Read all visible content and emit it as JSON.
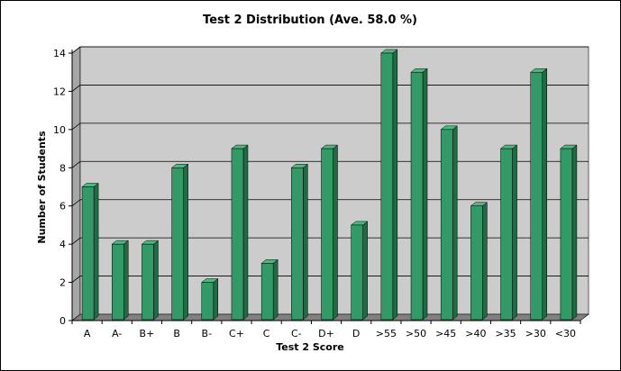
{
  "chart_data": {
    "type": "bar",
    "title": "Test 2 Distribution (Ave. 58.0 %)",
    "xlabel": "Test 2 Score",
    "ylabel": "Number of Students",
    "categories": [
      "A",
      "A-",
      "B+",
      "B",
      "B-",
      "C+",
      "C",
      "C-",
      "D+",
      "D",
      ">55",
      ">50",
      ">45",
      ">40",
      ">35",
      ">30",
      "<30"
    ],
    "values": [
      7,
      4,
      4,
      8,
      2,
      9,
      3,
      8,
      9,
      5,
      14,
      13,
      10,
      6,
      9,
      13,
      9
    ],
    "ylim": [
      0,
      14
    ],
    "yticks": [
      0,
      2,
      4,
      6,
      8,
      10,
      12,
      14
    ],
    "grid": true,
    "legend": "none",
    "colors": {
      "bar_front": "#339966",
      "bar_top": "#4fb882",
      "bar_side": "#1f6b44",
      "plot_back": "#cccccc",
      "plot_side": "#a6a6a6",
      "floor": "#808080"
    }
  }
}
